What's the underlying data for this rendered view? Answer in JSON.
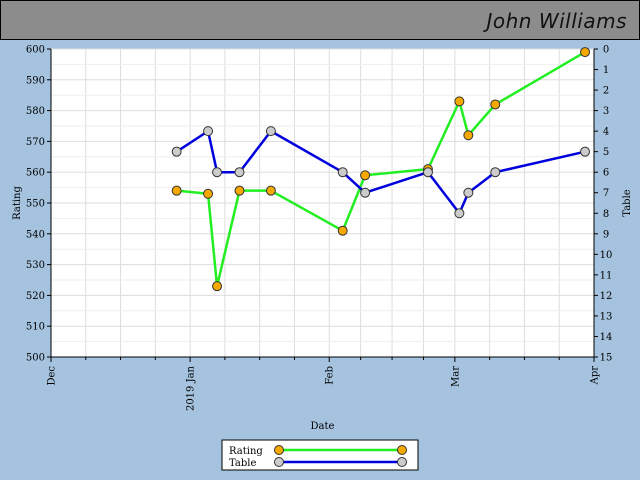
{
  "header": {
    "player_name": "John Williams"
  },
  "chart_data": {
    "type": "line",
    "xlabel": "Date",
    "ylabel_left": "Rating",
    "ylabel_right": "Table",
    "x_ticks": [
      {
        "date": "2018-12-01",
        "label": "Dec"
      },
      {
        "date": "2019-01-01",
        "label": "2019 Jan"
      },
      {
        "date": "2019-02-01",
        "label": "Feb"
      },
      {
        "date": "2019-03-01",
        "label": "Mar"
      },
      {
        "date": "2019-04-01",
        "label": "Apr"
      }
    ],
    "xlim": [
      "2018-12-01",
      "2019-04-01"
    ],
    "ylim_left": [
      500,
      600
    ],
    "ylim_right": [
      0,
      15
    ],
    "right_axis_inverted": true,
    "left_ticks": [
      500,
      510,
      520,
      530,
      540,
      550,
      560,
      570,
      580,
      590,
      600
    ],
    "right_ticks": [
      0,
      1,
      2,
      3,
      4,
      5,
      6,
      7,
      8,
      9,
      10,
      11,
      12,
      13,
      14,
      15
    ],
    "grid": true,
    "legend_position": "bottom-center",
    "series": [
      {
        "name": "Rating",
        "axis": "left",
        "line_color": "#22ee22",
        "marker_color": "#f5a800",
        "points": [
          {
            "x": "2018-12-29",
            "y": 554
          },
          {
            "x": "2019-01-05",
            "y": 553
          },
          {
            "x": "2019-01-07",
            "y": 523
          },
          {
            "x": "2019-01-12",
            "y": 554
          },
          {
            "x": "2019-01-19",
            "y": 554
          },
          {
            "x": "2019-02-04",
            "y": 541
          },
          {
            "x": "2019-02-09",
            "y": 559
          },
          {
            "x": "2019-02-23",
            "y": 561
          },
          {
            "x": "2019-03-02",
            "y": 583
          },
          {
            "x": "2019-03-04",
            "y": 572
          },
          {
            "x": "2019-03-10",
            "y": 582
          },
          {
            "x": "2019-03-30",
            "y": 599
          }
        ]
      },
      {
        "name": "Table",
        "axis": "right",
        "line_color": "#0000dd",
        "marker_color": "#cccccc",
        "points": [
          {
            "x": "2018-12-29",
            "y": 5
          },
          {
            "x": "2019-01-05",
            "y": 4
          },
          {
            "x": "2019-01-07",
            "y": 6
          },
          {
            "x": "2019-01-12",
            "y": 6
          },
          {
            "x": "2019-01-19",
            "y": 4
          },
          {
            "x": "2019-02-04",
            "y": 6
          },
          {
            "x": "2019-02-09",
            "y": 7
          },
          {
            "x": "2019-02-23",
            "y": 6
          },
          {
            "x": "2019-03-02",
            "y": 8
          },
          {
            "x": "2019-03-04",
            "y": 7
          },
          {
            "x": "2019-03-10",
            "y": 6
          },
          {
            "x": "2019-03-30",
            "y": 5
          }
        ]
      }
    ]
  }
}
